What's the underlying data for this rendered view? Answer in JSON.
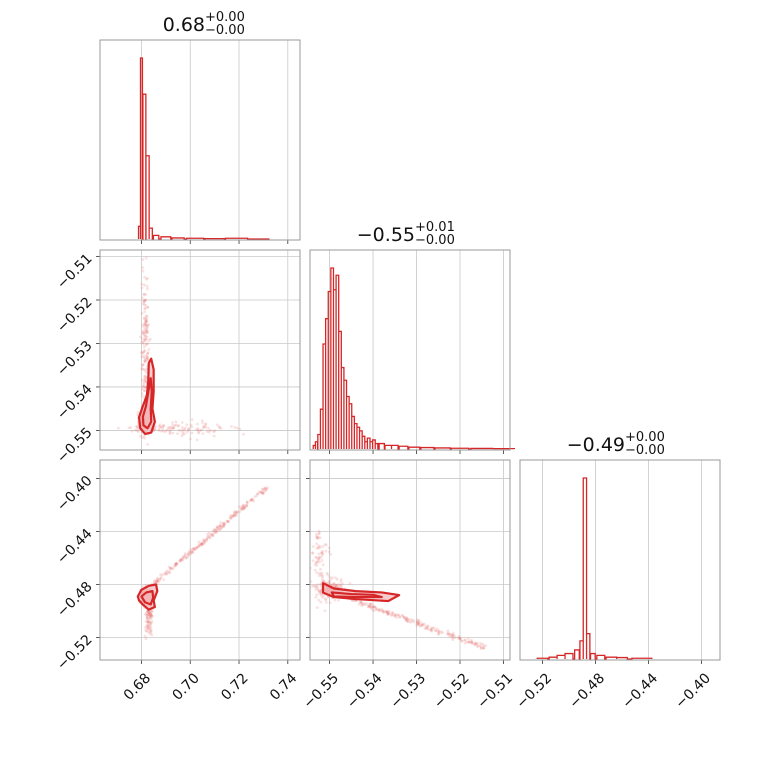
{
  "chart_data": [
    {
      "type": "histogram",
      "panel": "1D marginal, parameter 1",
      "title": {
        "median": "0.68",
        "plus": "+0.00",
        "minus": "−0.00"
      },
      "xlim": [
        0.663,
        0.745
      ],
      "xticks": [
        {
          "value": 0.68,
          "label": "0.68"
        },
        {
          "value": 0.7,
          "label": "0.70"
        },
        {
          "value": 0.72,
          "label": "0.72"
        },
        {
          "value": 0.74,
          "label": "0.74"
        }
      ],
      "bins": [
        {
          "x": 0.6792,
          "h": 0.07
        },
        {
          "x": 0.68,
          "h": 1.0
        },
        {
          "x": 0.6812,
          "h": 0.8
        },
        {
          "x": 0.6825,
          "h": 0.46
        },
        {
          "x": 0.6838,
          "h": 0.06
        },
        {
          "x": 0.686,
          "h": 0.02
        },
        {
          "x": 0.69,
          "h": 0.012
        },
        {
          "x": 0.695,
          "h": 0.006
        },
        {
          "x": 0.702,
          "h": 0.004
        },
        {
          "x": 0.71,
          "h": 0.002
        },
        {
          "x": 0.719,
          "h": 0.004
        },
        {
          "x": 0.728,
          "h": 0.0
        }
      ]
    },
    {
      "type": "histogram",
      "panel": "1D marginal, parameter 2",
      "title": {
        "median": "−0.55",
        "plus": "+0.01",
        "minus": "−0.00"
      },
      "xlim": [
        -0.5545,
        -0.5085
      ],
      "xticks": [
        {
          "value": -0.55,
          "label": "−0.55"
        },
        {
          "value": -0.54,
          "label": "−0.54"
        },
        {
          "value": -0.53,
          "label": "−0.53"
        },
        {
          "value": -0.52,
          "label": "−0.52"
        },
        {
          "value": -0.51,
          "label": "−0.51"
        }
      ],
      "bins": [
        {
          "x": -0.5535,
          "h": 0.02
        },
        {
          "x": -0.553,
          "h": 0.04
        },
        {
          "x": -0.5524,
          "h": 0.08
        },
        {
          "x": -0.5518,
          "h": 0.22
        },
        {
          "x": -0.5512,
          "h": 0.58
        },
        {
          "x": -0.5506,
          "h": 0.72
        },
        {
          "x": -0.55,
          "h": 0.87
        },
        {
          "x": -0.5494,
          "h": 1.0
        },
        {
          "x": -0.5488,
          "h": 0.88
        },
        {
          "x": -0.5482,
          "h": 0.96
        },
        {
          "x": -0.5476,
          "h": 0.65
        },
        {
          "x": -0.547,
          "h": 0.45
        },
        {
          "x": -0.5464,
          "h": 0.38
        },
        {
          "x": -0.5458,
          "h": 0.29
        },
        {
          "x": -0.5452,
          "h": 0.25
        },
        {
          "x": -0.5446,
          "h": 0.18
        },
        {
          "x": -0.544,
          "h": 0.14
        },
        {
          "x": -0.5434,
          "h": 0.12
        },
        {
          "x": -0.5428,
          "h": 0.1
        },
        {
          "x": -0.5422,
          "h": 0.07
        },
        {
          "x": -0.5416,
          "h": 0.04
        },
        {
          "x": -0.541,
          "h": 0.06
        },
        {
          "x": -0.5404,
          "h": 0.04
        },
        {
          "x": -0.5398,
          "h": 0.05
        },
        {
          "x": -0.5392,
          "h": 0.03
        },
        {
          "x": -0.538,
          "h": 0.03
        },
        {
          "x": -0.5365,
          "h": 0.02
        },
        {
          "x": -0.535,
          "h": 0.02
        },
        {
          "x": -0.533,
          "h": 0.015
        },
        {
          "x": -0.5305,
          "h": 0.01
        },
        {
          "x": -0.5275,
          "h": 0.008
        },
        {
          "x": -0.524,
          "h": 0.006
        },
        {
          "x": -0.52,
          "h": 0.004
        },
        {
          "x": -0.515,
          "h": 0.003
        },
        {
          "x": -0.51,
          "h": 0.002
        }
      ]
    },
    {
      "type": "histogram",
      "panel": "1D marginal, parameter 3",
      "title": {
        "median": "−0.49",
        "plus": "+0.00",
        "minus": "−0.00"
      },
      "xlim": [
        -0.537,
        -0.386
      ],
      "xticks": [
        {
          "value": -0.52,
          "label": "−0.52"
        },
        {
          "value": -0.48,
          "label": "−0.48"
        },
        {
          "value": -0.44,
          "label": "−0.44"
        },
        {
          "value": -0.4,
          "label": "−0.40"
        }
      ],
      "bins": [
        {
          "x": -0.52,
          "h": 0.004
        },
        {
          "x": -0.512,
          "h": 0.01
        },
        {
          "x": -0.506,
          "h": 0.02
        },
        {
          "x": -0.5,
          "h": 0.03
        },
        {
          "x": -0.494,
          "h": 0.05
        },
        {
          "x": -0.4905,
          "h": 0.1
        },
        {
          "x": -0.488,
          "h": 1.0
        },
        {
          "x": -0.4855,
          "h": 0.14
        },
        {
          "x": -0.482,
          "h": 0.03
        },
        {
          "x": -0.476,
          "h": 0.02
        },
        {
          "x": -0.468,
          "h": 0.01
        },
        {
          "x": -0.46,
          "h": 0.008
        },
        {
          "x": -0.445,
          "h": 0.004
        }
      ]
    },
    {
      "type": "scatter-contour",
      "panel": "2D, parameter 1 vs parameter 2",
      "xlim": [
        0.663,
        0.745
      ],
      "ylim": [
        -0.5545,
        -0.5085
      ],
      "yticks": [
        {
          "value": -0.51,
          "label": "−0.51"
        },
        {
          "value": -0.52,
          "label": "−0.52"
        },
        {
          "value": -0.53,
          "label": "−0.53"
        },
        {
          "value": -0.54,
          "label": "−0.54"
        },
        {
          "value": -0.55,
          "label": "−0.55"
        }
      ],
      "point_clouds": [
        {
          "cx": 0.681,
          "cy": -0.548,
          "sx": 0.0012,
          "sy": 0.0012,
          "n": 160
        },
        {
          "cx": 0.6815,
          "cy": -0.533,
          "sx": 0.0008,
          "sy": 0.0095,
          "n": 190
        },
        {
          "cx": 0.695,
          "cy": -0.5495,
          "sx": 0.011,
          "sy": 0.0008,
          "n": 110
        }
      ],
      "contours": [
        [
          [
            0.6795,
            -0.5495
          ],
          [
            0.679,
            -0.547
          ],
          [
            0.6805,
            -0.5445
          ],
          [
            0.6822,
            -0.542
          ],
          [
            0.6828,
            -0.5385
          ],
          [
            0.683,
            -0.5345
          ],
          [
            0.684,
            -0.5335
          ],
          [
            0.685,
            -0.536
          ],
          [
            0.685,
            -0.541
          ],
          [
            0.6845,
            -0.545
          ],
          [
            0.6855,
            -0.548
          ],
          [
            0.684,
            -0.5505
          ],
          [
            0.6815,
            -0.5508
          ]
        ],
        [
          [
            0.6808,
            -0.5488
          ],
          [
            0.6806,
            -0.5468
          ],
          [
            0.6818,
            -0.5445
          ],
          [
            0.683,
            -0.5405
          ],
          [
            0.6838,
            -0.538
          ],
          [
            0.6842,
            -0.541
          ],
          [
            0.6838,
            -0.545
          ],
          [
            0.684,
            -0.548
          ],
          [
            0.6825,
            -0.5495
          ]
        ]
      ]
    },
    {
      "type": "scatter-contour",
      "panel": "2D, parameter 1 vs parameter 3",
      "xlim": [
        0.663,
        0.745
      ],
      "ylim": [
        -0.537,
        -0.386
      ],
      "yticks": [
        {
          "value": -0.4,
          "label": "−0.40"
        },
        {
          "value": -0.44,
          "label": "−0.44"
        },
        {
          "value": -0.48,
          "label": "−0.48"
        },
        {
          "value": -0.52,
          "label": "−0.52"
        }
      ],
      "point_clouds": [
        {
          "cx": 0.682,
          "cy": -0.488,
          "sx": 0.0012,
          "sy": 0.003,
          "n": 150
        },
        {
          "cx": 0.683,
          "cy": -0.505,
          "sx": 0.001,
          "sy": 0.007,
          "n": 90
        },
        {
          "line_x": [
            0.684,
            0.732
          ],
          "line_y": [
            -0.481,
            -0.406
          ],
          "spread": 0.002,
          "n": 230
        }
      ],
      "contours": [
        [
          [
            0.6785,
            -0.489
          ],
          [
            0.68,
            -0.484
          ],
          [
            0.683,
            -0.481
          ],
          [
            0.686,
            -0.48
          ],
          [
            0.6865,
            -0.485
          ],
          [
            0.685,
            -0.492
          ],
          [
            0.6855,
            -0.497
          ],
          [
            0.683,
            -0.499
          ],
          [
            0.6805,
            -0.495
          ],
          [
            0.679,
            -0.492
          ]
        ],
        [
          [
            0.68,
            -0.489
          ],
          [
            0.682,
            -0.486
          ],
          [
            0.6845,
            -0.485
          ],
          [
            0.6848,
            -0.49
          ],
          [
            0.6838,
            -0.495
          ],
          [
            0.6815,
            -0.4935
          ]
        ]
      ]
    },
    {
      "type": "scatter-contour",
      "panel": "2D, parameter 2 vs parameter 3",
      "xlim": [
        -0.5545,
        -0.5085
      ],
      "ylim": [
        -0.537,
        -0.386
      ],
      "point_clouds": [
        {
          "cx": -0.55,
          "cy": -0.483,
          "sx": 0.0015,
          "sy": 0.004,
          "n": 160
        },
        {
          "cx": -0.552,
          "cy": -0.465,
          "sx": 0.001,
          "sy": 0.015,
          "n": 80
        },
        {
          "line_x": [
            -0.546,
            -0.514
          ],
          "line_y": [
            -0.49,
            -0.528
          ],
          "spread": 0.002,
          "n": 210
        }
      ],
      "contours": [
        [
          [
            -0.5515,
            -0.479
          ],
          [
            -0.549,
            -0.483
          ],
          [
            -0.544,
            -0.485
          ],
          [
            -0.538,
            -0.486
          ],
          [
            -0.534,
            -0.488
          ],
          [
            -0.5365,
            -0.4925
          ],
          [
            -0.544,
            -0.491
          ],
          [
            -0.549,
            -0.4895
          ],
          [
            -0.5515,
            -0.486
          ]
        ],
        [
          [
            -0.5495,
            -0.486
          ],
          [
            -0.545,
            -0.4872
          ],
          [
            -0.54,
            -0.4878
          ],
          [
            -0.538,
            -0.4895
          ],
          [
            -0.544,
            -0.4895
          ],
          [
            -0.549,
            -0.489
          ]
        ]
      ]
    }
  ],
  "colors": {
    "series": "#d62728",
    "fill": "#f3b7b9",
    "points": "#e8797b",
    "grid": "#c8c8c8",
    "frame": "#9a9a9a"
  }
}
